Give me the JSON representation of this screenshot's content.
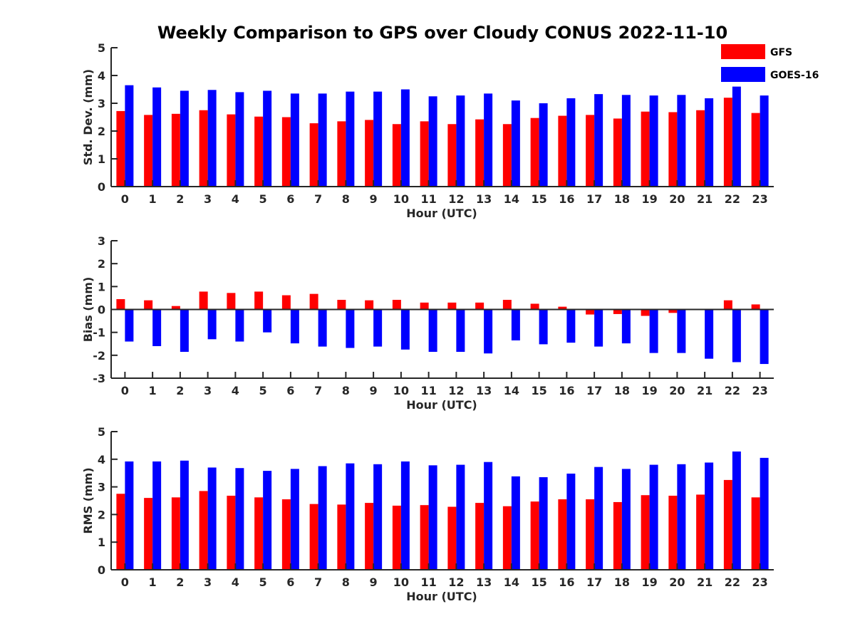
{
  "chart_data": {
    "type": "bar",
    "title": "Weekly Comparison to GPS over Cloudy CONUS 2022-11-10",
    "categories": [
      "0",
      "1",
      "2",
      "3",
      "4",
      "5",
      "6",
      "7",
      "8",
      "9",
      "10",
      "11",
      "12",
      "13",
      "14",
      "15",
      "16",
      "17",
      "18",
      "19",
      "20",
      "21",
      "22",
      "23"
    ],
    "legend": {
      "placement": "top-right",
      "entries": [
        {
          "name": "GFS",
          "color": "#ff0000"
        },
        {
          "name": "GOES-16",
          "color": "#0000ff"
        }
      ]
    },
    "panels": [
      {
        "id": "stddev",
        "ylabel": "Std. Dev. (mm)",
        "xlabel": "Hour (UTC)",
        "ylim": [
          0,
          5
        ],
        "yticks": [
          0,
          1,
          2,
          3,
          4,
          5
        ],
        "series": [
          {
            "name": "GFS",
            "color": "#ff0000",
            "values": [
              2.72,
              2.58,
              2.62,
              2.75,
              2.6,
              2.52,
              2.5,
              2.28,
              2.35,
              2.4,
              2.25,
              2.35,
              2.25,
              2.42,
              2.25,
              2.47,
              2.55,
              2.58,
              2.45,
              2.7,
              2.68,
              2.75,
              3.2,
              2.65
            ]
          },
          {
            "name": "GOES-16",
            "color": "#0000ff",
            "values": [
              3.65,
              3.57,
              3.45,
              3.48,
              3.4,
              3.45,
              3.35,
              3.35,
              3.42,
              3.42,
              3.5,
              3.25,
              3.28,
              3.35,
              3.1,
              3.0,
              3.18,
              3.33,
              3.3,
              3.28,
              3.3,
              3.18,
              3.6,
              3.28
            ]
          }
        ]
      },
      {
        "id": "bias",
        "ylabel": "Bias (mm)",
        "xlabel": "Hour (UTC)",
        "ylim": [
          -3,
          3
        ],
        "yticks": [
          -3,
          -2,
          -1,
          0,
          1,
          2,
          3
        ],
        "series": [
          {
            "name": "GFS",
            "color": "#ff0000",
            "values": [
              0.45,
              0.4,
              0.15,
              0.78,
              0.72,
              0.78,
              0.62,
              0.68,
              0.42,
              0.4,
              0.42,
              0.3,
              0.3,
              0.3,
              0.42,
              0.25,
              0.12,
              -0.22,
              -0.2,
              -0.28,
              -0.15,
              0.0,
              0.4,
              0.22
            ]
          },
          {
            "name": "GOES-16",
            "color": "#0000ff",
            "values": [
              -1.4,
              -1.6,
              -1.85,
              -1.3,
              -1.4,
              -1.0,
              -1.48,
              -1.62,
              -1.68,
              -1.62,
              -1.75,
              -1.85,
              -1.85,
              -1.92,
              -1.35,
              -1.52,
              -1.45,
              -1.62,
              -1.48,
              -1.9,
              -1.9,
              -2.15,
              -2.3,
              -2.38
            ]
          }
        ]
      },
      {
        "id": "rms",
        "ylabel": "RMS (mm)",
        "xlabel": "Hour (UTC)",
        "ylim": [
          0,
          5
        ],
        "yticks": [
          0,
          1,
          2,
          3,
          4,
          5
        ],
        "series": [
          {
            "name": "GFS",
            "color": "#ff0000",
            "values": [
              2.75,
              2.6,
              2.62,
              2.85,
              2.68,
              2.62,
              2.55,
              2.38,
              2.36,
              2.42,
              2.32,
              2.34,
              2.28,
              2.42,
              2.3,
              2.47,
              2.55,
              2.55,
              2.45,
              2.7,
              2.68,
              2.72,
              3.25,
              2.62
            ]
          },
          {
            "name": "GOES-16",
            "color": "#0000ff",
            "values": [
              3.92,
              3.92,
              3.95,
              3.7,
              3.68,
              3.58,
              3.65,
              3.75,
              3.85,
              3.82,
              3.92,
              3.78,
              3.8,
              3.9,
              3.38,
              3.35,
              3.48,
              3.72,
              3.65,
              3.8,
              3.82,
              3.88,
              4.28,
              4.05
            ]
          }
        ]
      }
    ]
  }
}
